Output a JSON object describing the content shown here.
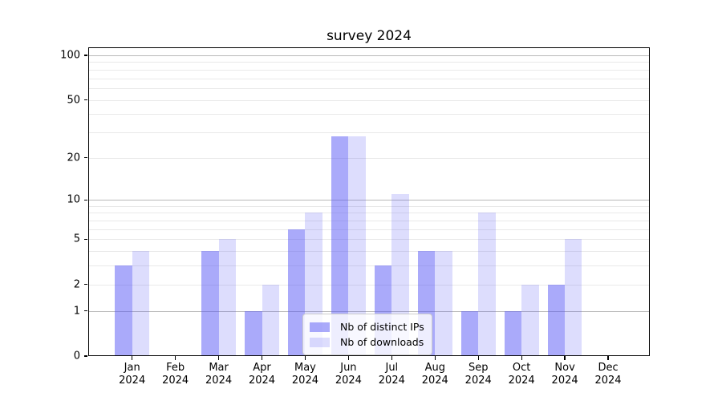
{
  "chart_data": {
    "type": "bar",
    "title": "survey 2024",
    "x_axis": {
      "categories": [
        {
          "month": "Jan",
          "year": "2024"
        },
        {
          "month": "Feb",
          "year": "2024"
        },
        {
          "month": "Mar",
          "year": "2024"
        },
        {
          "month": "Apr",
          "year": "2024"
        },
        {
          "month": "May",
          "year": "2024"
        },
        {
          "month": "Jun",
          "year": "2024"
        },
        {
          "month": "Jul",
          "year": "2024"
        },
        {
          "month": "Aug",
          "year": "2024"
        },
        {
          "month": "Sep",
          "year": "2024"
        },
        {
          "month": "Oct",
          "year": "2024"
        },
        {
          "month": "Nov",
          "year": "2024"
        },
        {
          "month": "Dec",
          "year": "2024"
        }
      ]
    },
    "y_axis": {
      "scale": "log1p",
      "tick_labels": [
        0,
        1,
        2,
        5,
        10,
        20,
        50,
        100
      ],
      "grid_major": [
        1,
        10,
        100
      ],
      "grid_minor": [
        2,
        3,
        4,
        5,
        6,
        7,
        8,
        9,
        20,
        30,
        40,
        50,
        60,
        70,
        80,
        90
      ],
      "range": [
        0,
        113
      ]
    },
    "series": [
      {
        "name": "Nb of distinct IPs",
        "color": "rgba(85,85,245,0.5)",
        "values": [
          3,
          0,
          4,
          1,
          6,
          28,
          3,
          4,
          1,
          1,
          2,
          0
        ]
      },
      {
        "name": "Nb of downloads",
        "color": "rgba(85,85,245,0.2)",
        "values": [
          4,
          0,
          5,
          2,
          8,
          28,
          11,
          4,
          8,
          2,
          5,
          0
        ]
      }
    ],
    "legend": {
      "position": "lower-center"
    },
    "grid": {
      "major_color": "#b9b9b9",
      "minor_color": "#e9e9e9"
    },
    "axis_color": "#000000",
    "background_color": "#ffffff"
  }
}
